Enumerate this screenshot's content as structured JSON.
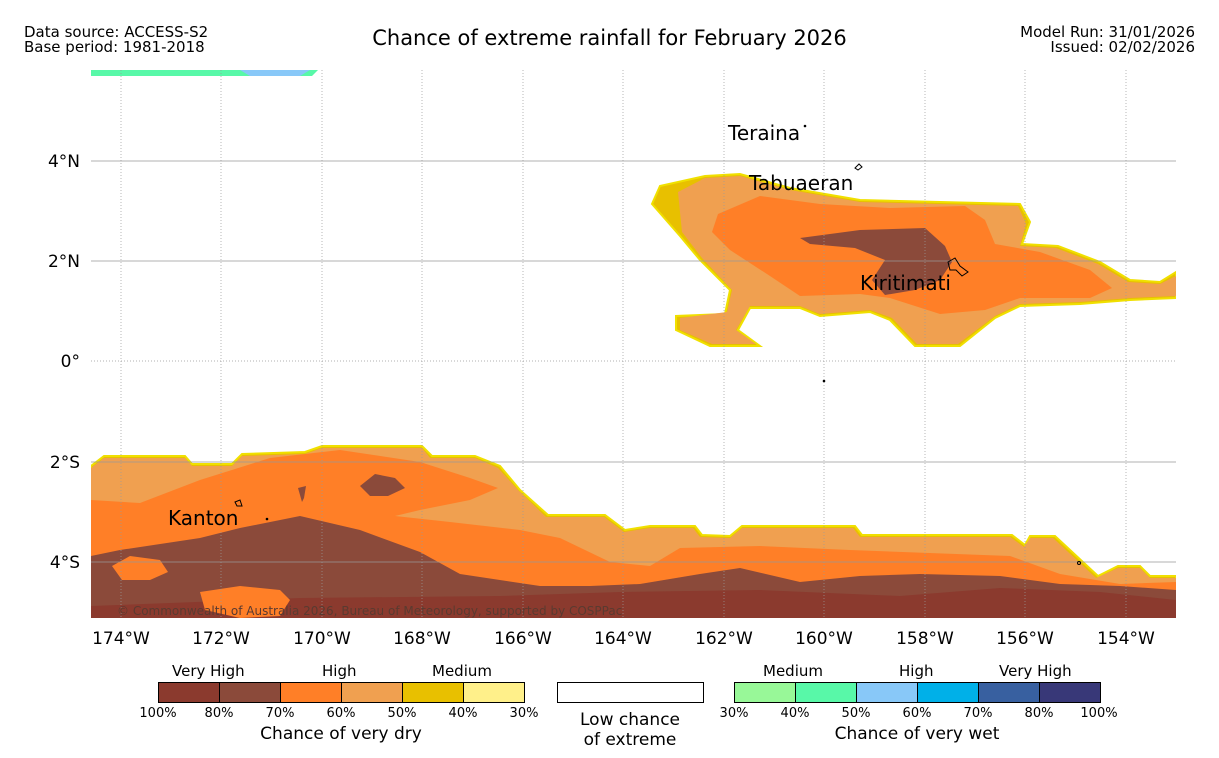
{
  "header": {
    "data_source": "Data source: ACCESS-S2",
    "base_period": "Base period: 1981-2018",
    "title": "Chance of extreme rainfall for February 2026",
    "model_run": "Model Run: 31/01/2026",
    "issued": "Issued: 02/02/2026"
  },
  "map": {
    "lat_labels": [
      "4°N",
      "2°N",
      "0°",
      "2°S",
      "4°S"
    ],
    "lon_labels": [
      "174°W",
      "172°W",
      "170°W",
      "168°W",
      "166°W",
      "164°W",
      "162°W",
      "160°W",
      "158°W",
      "156°W",
      "154°W"
    ],
    "places": [
      "Teraina",
      "Tabuaeran",
      "Kiritimati",
      "Kanton"
    ],
    "copyright": "© Commonwealth of Australia 2026, Bureau of Meteorology, supported by COSPPac"
  },
  "legend": {
    "dry": {
      "categories": [
        "Very High",
        "High",
        "Medium"
      ],
      "ticks": [
        "100%",
        "80%",
        "70%",
        "60%",
        "50%",
        "40%",
        "30%"
      ],
      "colors": [
        "#8b3a2e",
        "#8b4a3a",
        "#ff7f27",
        "#f0a050",
        "#e8c000",
        "#fff08a"
      ],
      "title": "Chance of very dry"
    },
    "neutral": {
      "label_line1": "Low chance",
      "label_line2": "of extreme"
    },
    "wet": {
      "categories": [
        "Medium",
        "High",
        "Very High"
      ],
      "ticks": [
        "30%",
        "40%",
        "50%",
        "60%",
        "70%",
        "80%",
        "100%"
      ],
      "colors": [
        "#98f898",
        "#58f8a8",
        "#88c8f8",
        "#00b0e8",
        "#3860a0",
        "#383878"
      ],
      "title": "Chance of very wet"
    }
  }
}
